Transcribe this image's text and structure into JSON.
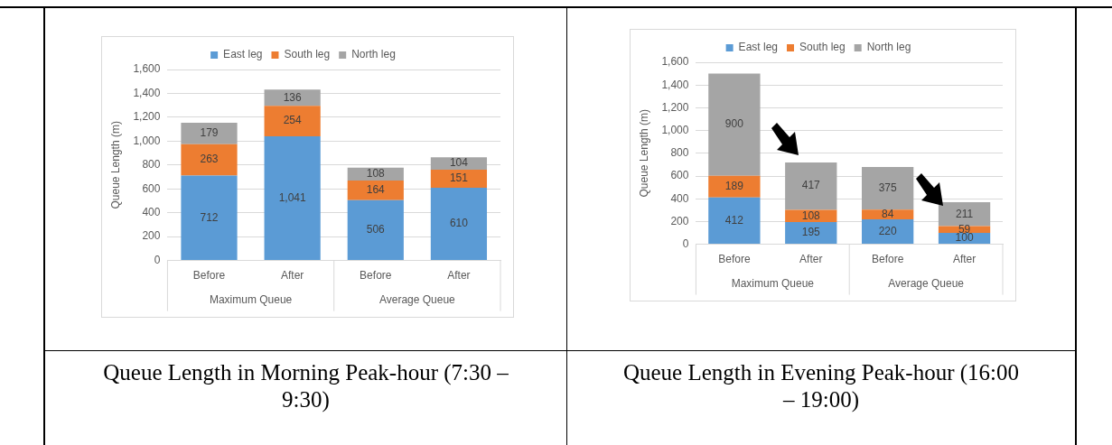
{
  "chart_data": [
    {
      "type": "bar",
      "title": "Queue Length in Morning Peak-hour (7:30 – 9:30)",
      "ylabel": "Queue Length (m)",
      "categories": [
        "Before",
        "After",
        "Before",
        "After"
      ],
      "stacked": true,
      "legend": "top",
      "grid": "y",
      "ylim": [
        0,
        1600
      ],
      "yticks": [
        0,
        200,
        400,
        600,
        800,
        {
          "value": 1000,
          "label": "1,000"
        },
        {
          "value": 1200,
          "label": "1,200"
        },
        {
          "value": 1400,
          "label": "1,400"
        },
        {
          "value": 1600,
          "label": "1,600"
        }
      ],
      "annotations": [
        "Maximum Queue",
        "Average Queue"
      ],
      "series": [
        {
          "name": "East leg",
          "color": "#5b9bd5",
          "values": [
            712,
            1041,
            506,
            610
          ],
          "value_labels": [
            "712",
            "1,041",
            "506",
            "610"
          ]
        },
        {
          "name": "South leg",
          "color": "#ed7d31",
          "values": [
            263,
            254,
            164,
            151
          ],
          "value_labels": [
            "263",
            "254",
            "164",
            "151"
          ]
        },
        {
          "name": "North leg",
          "color": "#a5a5a5",
          "values": [
            179,
            136,
            108,
            104
          ],
          "value_labels": [
            "179",
            "136",
            "108",
            "104"
          ]
        }
      ]
    },
    {
      "type": "bar",
      "title": "Queue Length in Evening Peak-hour (16:00 – 19:00)",
      "ylabel": "Queue Length (m)",
      "categories": [
        "Before",
        "After",
        "Before",
        "After"
      ],
      "stacked": true,
      "legend": "top",
      "grid": "y",
      "ylim": [
        0,
        1600
      ],
      "yticks": [
        0,
        200,
        400,
        600,
        800,
        {
          "value": 1000,
          "label": "1,000"
        },
        {
          "value": 1200,
          "label": "1,200"
        },
        {
          "value": 1400,
          "label": "1,400"
        },
        {
          "value": 1600,
          "label": "1,600"
        }
      ],
      "annotations": [
        "Maximum Queue",
        "Average Queue"
      ],
      "series": [
        {
          "name": "East leg",
          "color": "#5b9bd5",
          "values": [
            412,
            195,
            220,
            100
          ],
          "value_labels": [
            "412",
            "195",
            "220",
            "100"
          ]
        },
        {
          "name": "South leg",
          "color": "#ed7d31",
          "values": [
            189,
            108,
            84,
            59
          ],
          "value_labels": [
            "189",
            "108",
            "84",
            "59"
          ]
        },
        {
          "name": "North leg",
          "color": "#a5a5a5",
          "values": [
            900,
            417,
            375,
            211
          ],
          "value_labels": [
            "900",
            "417",
            "375",
            "211"
          ]
        }
      ]
    }
  ]
}
